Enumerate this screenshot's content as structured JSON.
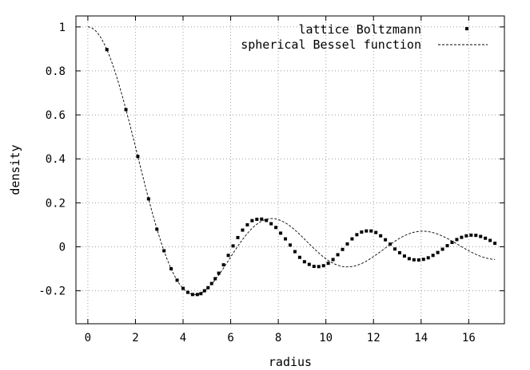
{
  "chart_data": {
    "type": "scatter",
    "title": "",
    "xlabel": "radius",
    "ylabel": "density",
    "xlim": [
      -0.5,
      17.5
    ],
    "ylim": [
      -0.35,
      1.05
    ],
    "xticks": [
      0,
      2,
      4,
      6,
      8,
      10,
      12,
      14,
      16
    ],
    "yticks": [
      -0.2,
      0,
      0.2,
      0.4,
      0.6,
      0.8,
      1
    ],
    "ytick_labels": [
      "-0.2",
      "0",
      "0.2",
      "0.4",
      "0.6",
      "0.8",
      "1"
    ],
    "grid": true,
    "legend_position": "top-right",
    "series": [
      {
        "name": "lattice Boltzmann",
        "style": "points",
        "x": [
          0.8,
          1.6,
          2.1,
          2.55,
          2.9,
          3.2,
          3.5,
          3.75,
          4.0,
          4.2,
          4.4,
          4.6,
          4.75,
          4.9,
          5.05,
          5.2,
          5.35,
          5.5,
          5.7,
          5.9,
          6.1,
          6.3,
          6.5,
          6.7,
          6.9,
          7.1,
          7.3,
          7.5,
          7.7,
          7.9,
          8.1,
          8.3,
          8.5,
          8.7,
          8.9,
          9.1,
          9.3,
          9.5,
          9.7,
          9.9,
          10.1,
          10.3,
          10.5,
          10.7,
          10.9,
          11.1,
          11.3,
          11.5,
          11.7,
          11.9,
          12.1,
          12.3,
          12.5,
          12.7,
          12.9,
          13.1,
          13.3,
          13.5,
          13.7,
          13.9,
          14.1,
          14.3,
          14.5,
          14.7,
          14.9,
          15.1,
          15.3,
          15.5,
          15.7,
          15.9,
          16.1,
          16.3,
          16.5,
          16.7,
          16.9,
          17.1
        ],
        "y": [
          0.897,
          0.624,
          0.411,
          0.218,
          0.08,
          -0.018,
          -0.1,
          -0.152,
          -0.189,
          -0.207,
          -0.217,
          -0.217,
          -0.213,
          -0.2,
          -0.186,
          -0.167,
          -0.145,
          -0.12,
          -0.082,
          -0.039,
          0.004,
          0.042,
          0.076,
          0.1,
          0.119,
          0.125,
          0.126,
          0.12,
          0.105,
          0.088,
          0.062,
          0.036,
          0.008,
          -0.022,
          -0.048,
          -0.068,
          -0.08,
          -0.089,
          -0.09,
          -0.086,
          -0.075,
          -0.058,
          -0.036,
          -0.012,
          0.013,
          0.036,
          0.055,
          0.067,
          0.072,
          0.072,
          0.065,
          0.05,
          0.032,
          0.012,
          -0.01,
          -0.027,
          -0.042,
          -0.054,
          -0.059,
          -0.06,
          -0.057,
          -0.05,
          -0.039,
          -0.026,
          -0.011,
          0.005,
          0.02,
          0.033,
          0.043,
          0.05,
          0.053,
          0.052,
          0.047,
          0.039,
          0.029,
          0.016
        ]
      },
      {
        "name": "spherical Bessel function",
        "style": "dashed-line",
        "function": "sin(x)/x"
      }
    ]
  },
  "colors": {
    "marks": "#000000",
    "grid": "#a0a0a0",
    "axes": "#000000",
    "background": "#ffffff"
  }
}
